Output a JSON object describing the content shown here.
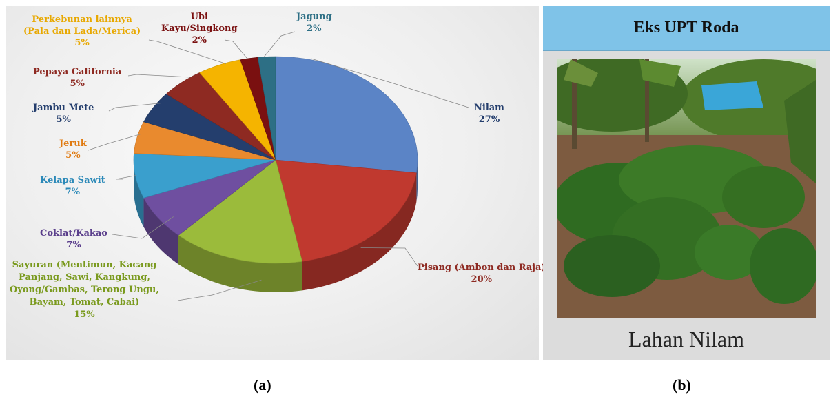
{
  "chart_data": {
    "type": "pie",
    "title": "",
    "slices": [
      {
        "name": "Nilam",
        "value": 27,
        "label_pct": "27%",
        "color": "#5b84c6"
      },
      {
        "name": "Pisang (Ambon dan Raja)",
        "value": 20,
        "label_pct": "20%",
        "color": "#c0392f"
      },
      {
        "name": "Sayuran (Mentimun, Kacang Panjang, Sawi, Kangkung, Oyong/Gambas, Terong Ungu, Bayam, Tomat, Cabai)",
        "value": 15,
        "label_pct": "15%",
        "color": "#9bbb3b"
      },
      {
        "name": "Coklat/Kakao",
        "value": 7,
        "label_pct": "7%",
        "color": "#6f4fa0"
      },
      {
        "name": "Kelapa Sawit",
        "value": 7,
        "label_pct": "7%",
        "color": "#3a9fcd"
      },
      {
        "name": "Jeruk",
        "value": 5,
        "label_pct": "5%",
        "color": "#e98a2e"
      },
      {
        "name": "Jambu Mete",
        "value": 5,
        "label_pct": "5%",
        "color": "#243e6d"
      },
      {
        "name": "Pepaya California",
        "value": 5,
        "label_pct": "5%",
        "color": "#8e2a22"
      },
      {
        "name": "Perkebunan lainnya (Pala dan Lada/Merica)",
        "value": 5,
        "label_pct": "5%",
        "color": "#f5b400"
      },
      {
        "name": "Ubi Kayu/Singkong",
        "value": 2,
        "label_pct": "2%",
        "color": "#7a1010"
      },
      {
        "name": "Jagung",
        "value": 2,
        "label_pct": "2%",
        "color": "#2d6f85"
      }
    ],
    "label_colors": {
      "Nilam": "#243e6d",
      "Pisang": "#8e2a22",
      "Sayuran": "#7a9a1e",
      "Coklat": "#5b3f8c",
      "Kelapa Sawit": "#2b89b8",
      "Jeruk": "#e07a10",
      "Jambu Mete": "#243e6d",
      "Pepaya": "#8e2a22",
      "Perkebunan": "#e8a800",
      "Ubi": "#7a1010",
      "Jagung": "#2d6f85"
    }
  },
  "labels": {
    "nilam": {
      "line1": "Nilam",
      "pct": "27%"
    },
    "pisang": {
      "line1": "Pisang (Ambon dan Raja)",
      "pct": "20%"
    },
    "sayuran": {
      "line1": "Sayuran (Mentimun, Kacang",
      "line2": "Panjang, Sawi, Kangkung,",
      "line3": "Oyong/Gambas, Terong Ungu,",
      "line4": "Bayam, Tomat, Cabai)",
      "pct": "15%"
    },
    "coklat": {
      "line1": "Coklat/Kakao",
      "pct": "7%"
    },
    "kelapa": {
      "line1": "Kelapa Sawit",
      "pct": "7%"
    },
    "jeruk": {
      "line1": "Jeruk",
      "pct": "5%"
    },
    "jambu": {
      "line1": "Jambu Mete",
      "pct": "5%"
    },
    "pepaya": {
      "line1": "Pepaya California",
      "pct": "5%"
    },
    "perkebunan": {
      "line1": "Perkebunan lainnya",
      "line2": "(Pala dan Lada/Merica)",
      "pct": "5%"
    },
    "ubi": {
      "line1": "Ubi",
      "line2": "Kayu/Singkong",
      "pct": "2%"
    },
    "jagung": {
      "line1": "Jagung",
      "pct": "2%"
    }
  },
  "photo_panel": {
    "title": "Eks UPT Roda",
    "caption": "Lahan Nilam"
  },
  "panel_labels": {
    "a": "(a)",
    "b": "(b)"
  }
}
